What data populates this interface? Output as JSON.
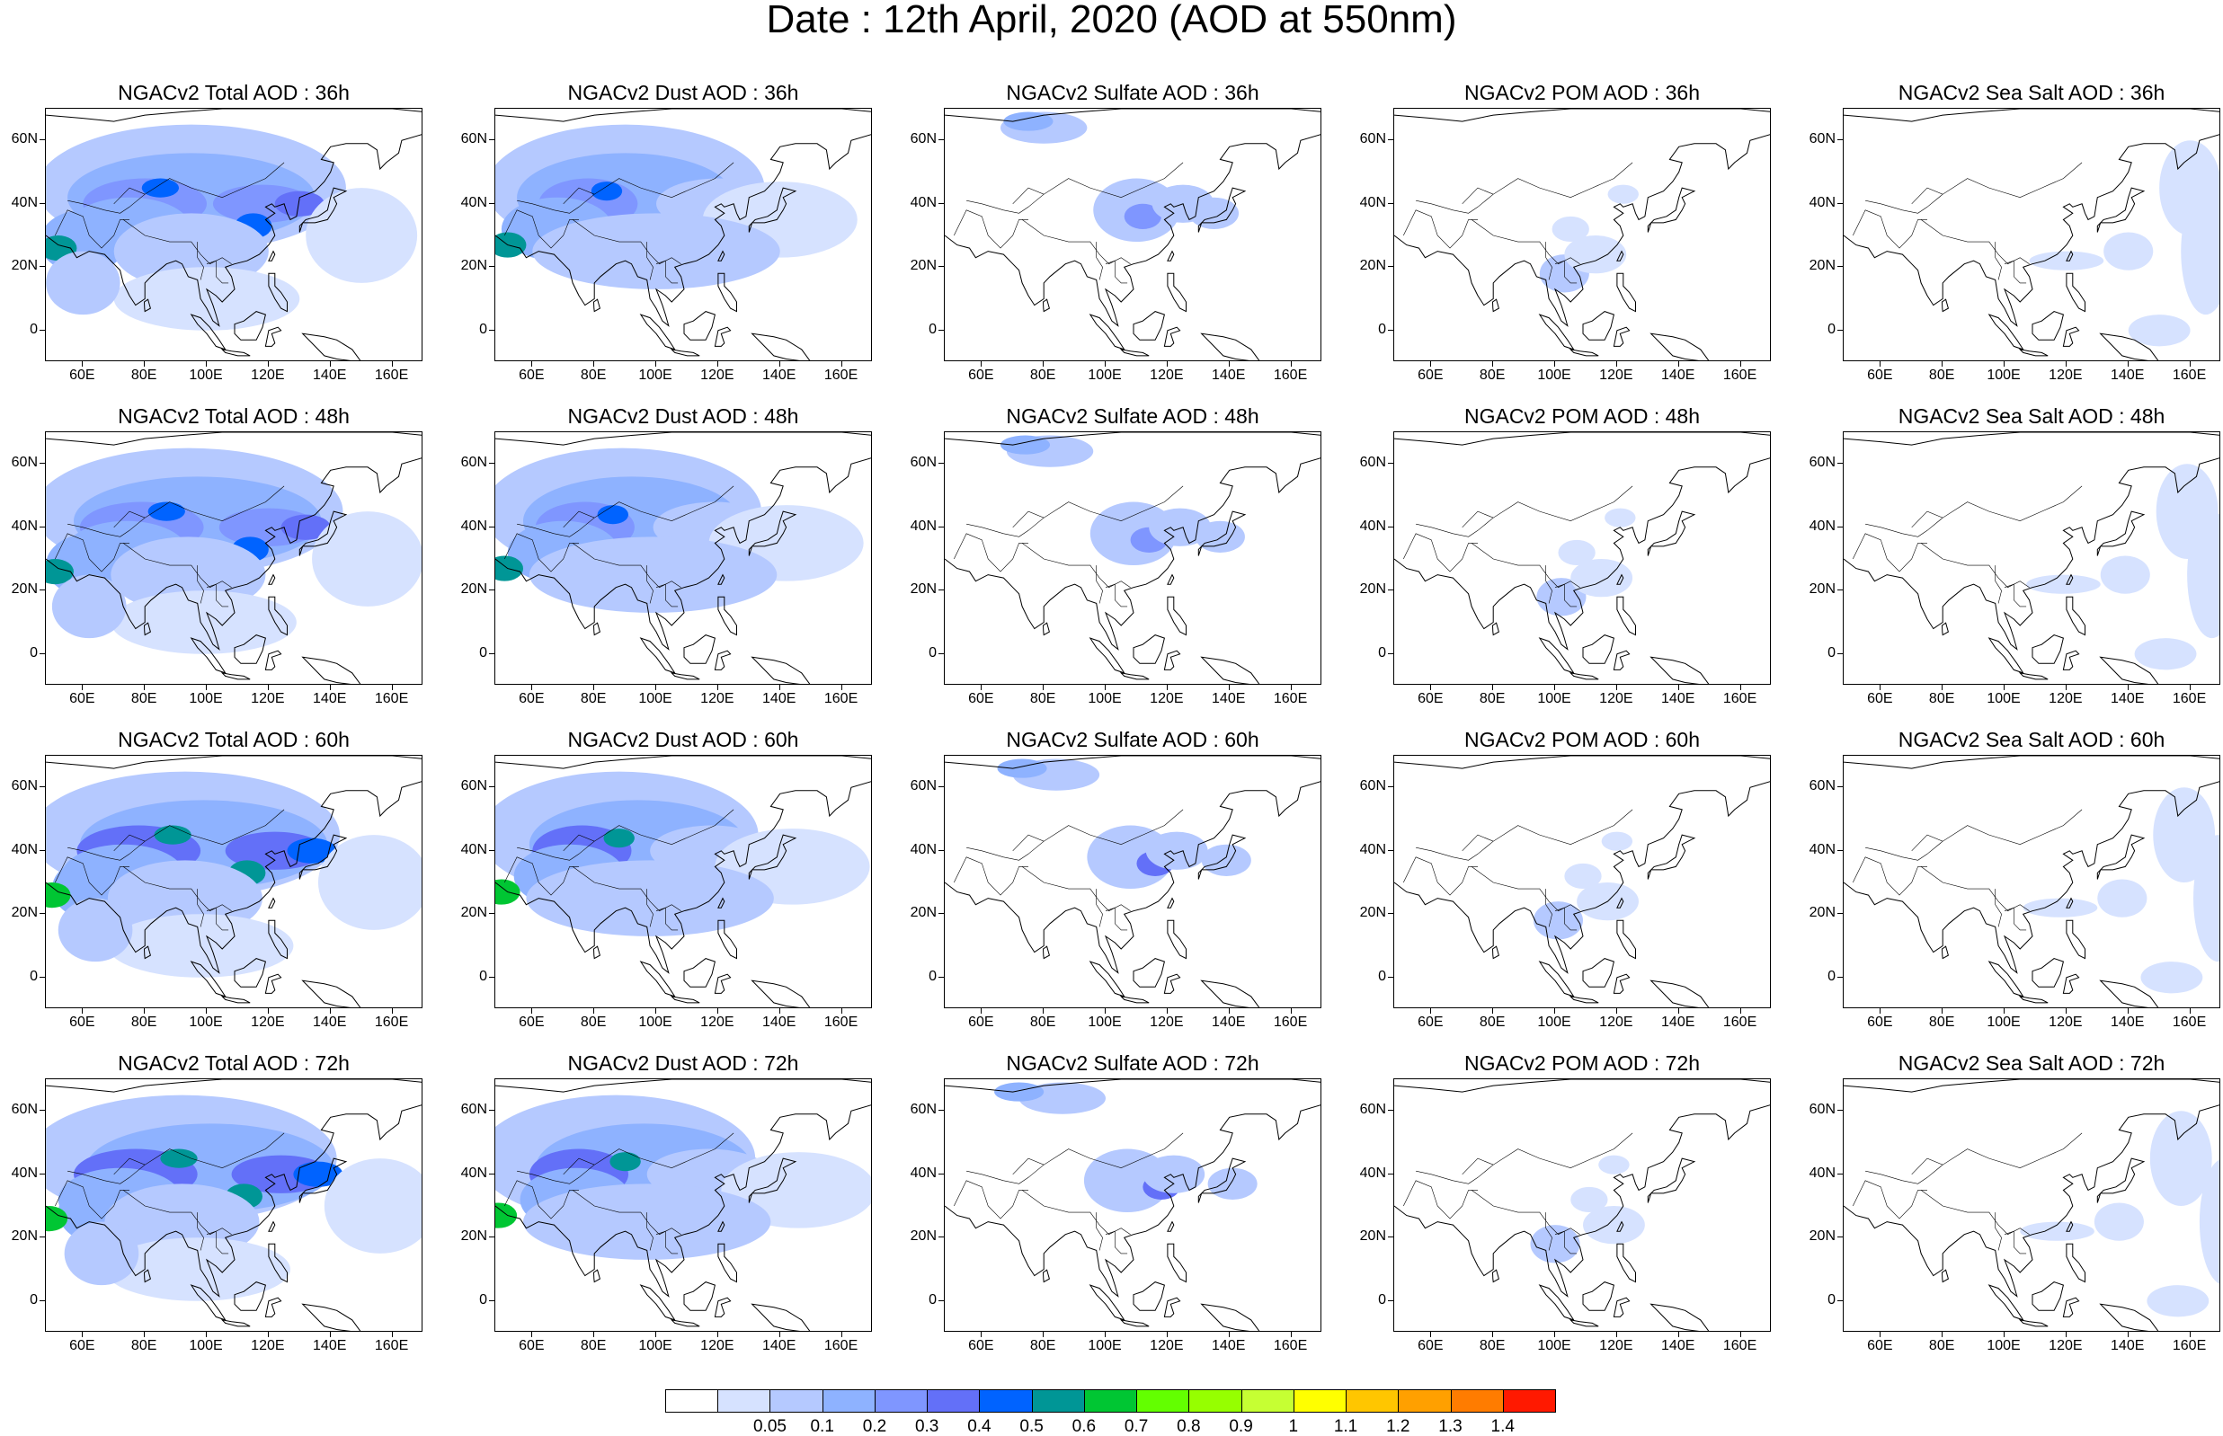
{
  "title": "Date : 12th April, 2020 (AOD at 550nm)",
  "columns": [
    {
      "key": "total",
      "name": "NGACv2 Total AOD"
    },
    {
      "key": "dust",
      "name": "NGACv2 Dust AOD"
    },
    {
      "key": "sulfate",
      "name": "NGACv2 Sulfate AOD"
    },
    {
      "key": "pom",
      "name": "NGACv2 POM AOD"
    },
    {
      "key": "seasalt",
      "name": "NGACv2 Sea Salt AOD"
    }
  ],
  "rows": [
    "36h",
    "48h",
    "60h",
    "72h"
  ],
  "panel_titles": [
    [
      "NGACv2 Total AOD : 36h",
      "NGACv2 Dust AOD : 36h",
      "NGACv2 Sulfate AOD : 36h",
      "NGACv2 POM AOD : 36h",
      "NGACv2 Sea Salt AOD : 36h"
    ],
    [
      "NGACv2 Total AOD : 48h",
      "NGACv2 Dust AOD : 48h",
      "NGACv2 Sulfate AOD : 48h",
      "NGACv2 POM AOD : 48h",
      "NGACv2 Sea Salt AOD : 48h"
    ],
    [
      "NGACv2 Total AOD : 60h",
      "NGACv2 Dust AOD : 60h",
      "NGACv2 Sulfate AOD : 60h",
      "NGACv2 POM AOD : 60h",
      "NGACv2 Sea Salt AOD : 60h"
    ],
    [
      "NGACv2 Total AOD : 72h",
      "NGACv2 Dust AOD : 72h",
      "NGACv2 Sulfate AOD : 72h",
      "NGACv2 POM AOD : 72h",
      "NGACv2 Sea Salt  AOD : 72h"
    ]
  ],
  "map": {
    "lat_labels": [
      "60N",
      "40N",
      "20N",
      "0"
    ],
    "lat_values": [
      60,
      40,
      20,
      0
    ],
    "lon_labels": [
      "60E",
      "80E",
      "100E",
      "120E",
      "140E",
      "160E"
    ],
    "lon_values": [
      60,
      80,
      100,
      120,
      140,
      160
    ],
    "lon_range": [
      48,
      170
    ],
    "lat_range": [
      -10,
      70
    ]
  },
  "colorbar": {
    "labels": [
      "0.05",
      "0.1",
      "0.2",
      "0.3",
      "0.4",
      "0.5",
      "0.6",
      "0.7",
      "0.8",
      "0.9",
      "1",
      "1.1",
      "1.2",
      "1.3",
      "1.4"
    ],
    "colors": [
      "#ffffff",
      "#d6e2ff",
      "#b5c9ff",
      "#8eb2ff",
      "#7f96ff",
      "#6370f8",
      "#0063ff",
      "#009696",
      "#00c633",
      "#63ff00",
      "#96ff00",
      "#c6ff33",
      "#ffff00",
      "#ffc600",
      "#ffa000",
      "#ff7c00",
      "#ff1900"
    ]
  }
}
